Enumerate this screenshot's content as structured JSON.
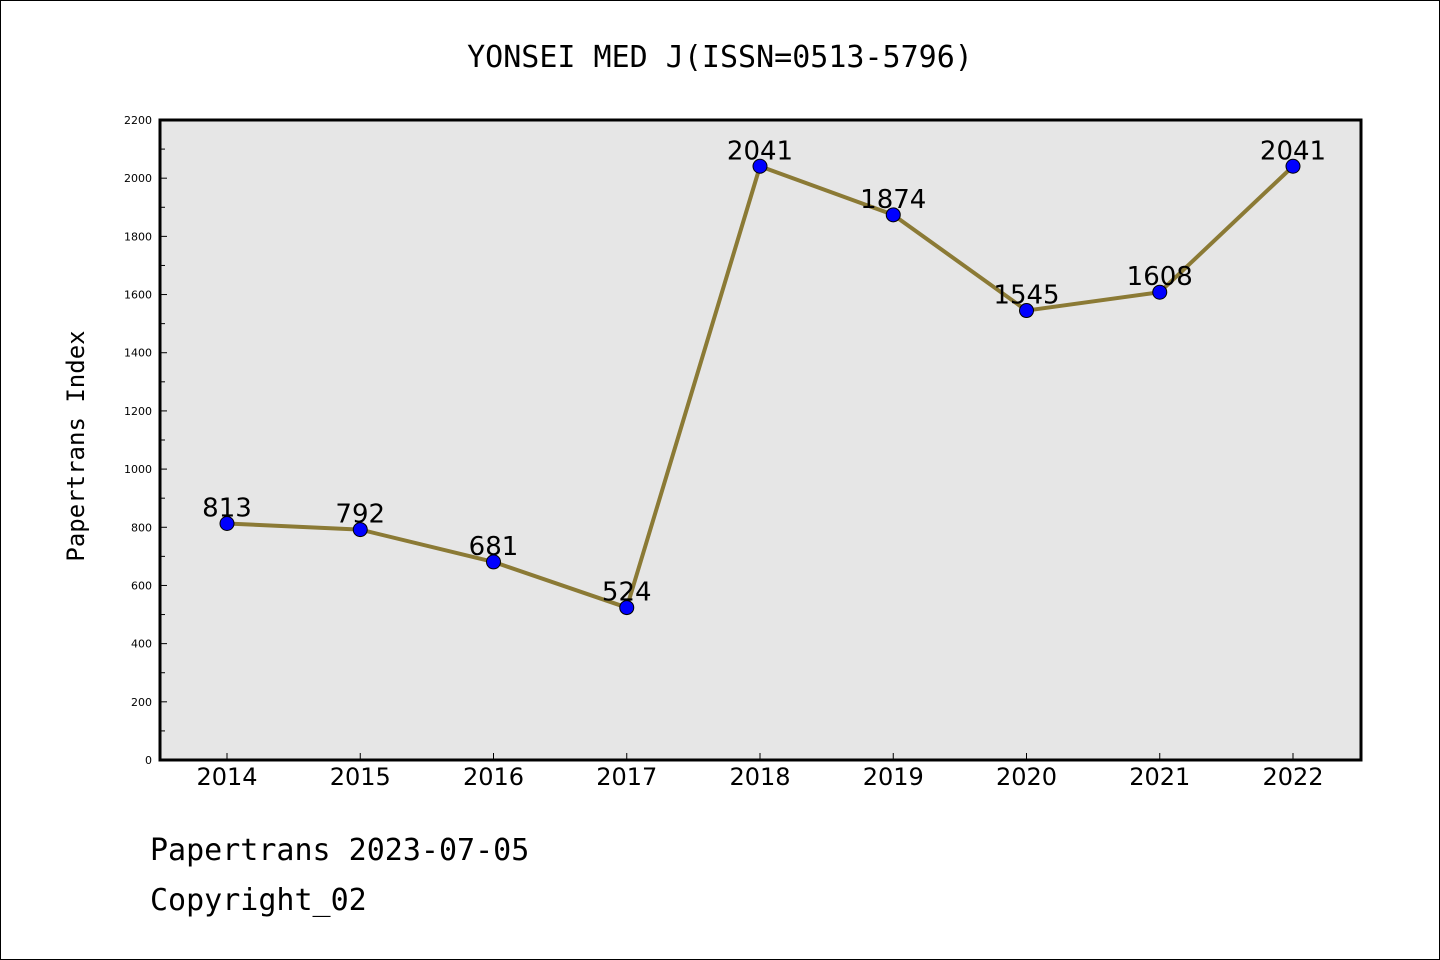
{
  "chart_data": {
    "type": "line",
    "title": "YONSEI MED J(ISSN=0513-5796)",
    "xlabel": "",
    "ylabel": "Papertrans Index",
    "categories": [
      "2014",
      "2015",
      "2016",
      "2017",
      "2018",
      "2019",
      "2020",
      "2021",
      "2022"
    ],
    "values": [
      813,
      792,
      681,
      524,
      2041,
      1874,
      1545,
      1608,
      2041
    ],
    "data_labels": [
      "813",
      "792",
      "681",
      "524",
      "2041",
      "1874",
      "1545",
      "1608",
      "2041"
    ],
    "ylim": [
      0,
      2200
    ],
    "yticks": [
      "0",
      "200",
      "400",
      "600",
      "800",
      "1000",
      "1200",
      "1400",
      "1600",
      "1800",
      "2000",
      "2200"
    ],
    "grid": false,
    "colors": {
      "line": "#8b7a35",
      "marker": "#0000ff",
      "plot_background": "#e6e6e6"
    }
  },
  "footer": {
    "date_line": "Papertrans 2023-07-05",
    "copyright_line": "Copyright_02"
  }
}
